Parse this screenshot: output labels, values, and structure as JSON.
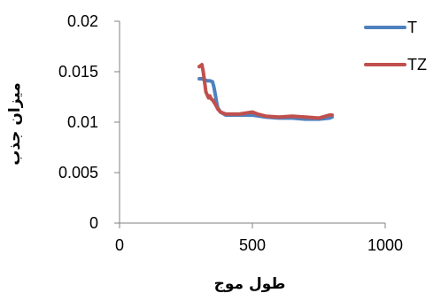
{
  "chart_data": {
    "type": "line",
    "title": "",
    "xlabel": "طول موج",
    "ylabel": "میزان جذب",
    "xlim": [
      0,
      1000
    ],
    "ylim": [
      0,
      0.02
    ],
    "x_ticks": [
      0,
      500,
      1000
    ],
    "x_tick_labels": [
      "0",
      "500",
      "1000"
    ],
    "y_ticks": [
      0,
      0.005,
      0.01,
      0.015,
      0.02
    ],
    "y_tick_labels": [
      "0",
      "0.005",
      "0.01",
      "0.015",
      "0.02"
    ],
    "grid": false,
    "legend": "right",
    "series": [
      {
        "name": "T",
        "color": "#4f81bd",
        "x": [
          300,
          310,
          320,
          330,
          340,
          350,
          355,
          360,
          365,
          370,
          380,
          400,
          450,
          500,
          550,
          600,
          650,
          700,
          750,
          790,
          800
        ],
        "y": [
          0.0143,
          0.0143,
          0.0142,
          0.0141,
          0.0141,
          0.014,
          0.0135,
          0.0128,
          0.012,
          0.0114,
          0.011,
          0.0107,
          0.0107,
          0.0107,
          0.0105,
          0.0104,
          0.0104,
          0.0103,
          0.0103,
          0.0104,
          0.0105
        ]
      },
      {
        "name": "TZ",
        "color": "#c0504d",
        "x": [
          300,
          305,
          310,
          315,
          320,
          325,
          330,
          335,
          340,
          345,
          350,
          360,
          370,
          380,
          400,
          450,
          500,
          520,
          550,
          600,
          650,
          700,
          750,
          790,
          800
        ],
        "y": [
          0.0155,
          0.0156,
          0.0157,
          0.015,
          0.014,
          0.013,
          0.0127,
          0.0124,
          0.0126,
          0.0123,
          0.0122,
          0.0118,
          0.0113,
          0.011,
          0.0108,
          0.0108,
          0.011,
          0.0108,
          0.0106,
          0.0105,
          0.0106,
          0.0105,
          0.0104,
          0.0107,
          0.0107
        ]
      }
    ]
  }
}
